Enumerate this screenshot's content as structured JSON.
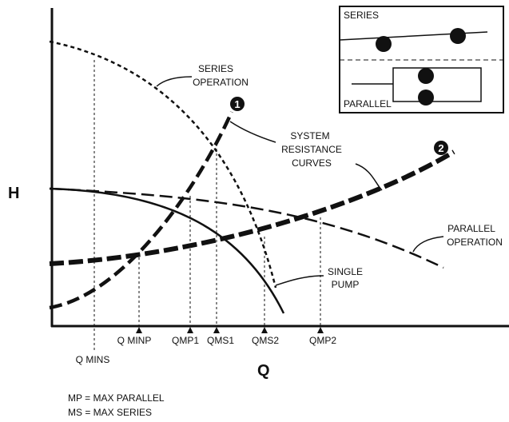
{
  "axes": {
    "y_label": "H",
    "x_label": "Q"
  },
  "ticks": [
    "Q MINS",
    "Q MINP",
    "QMP1",
    "QMS1",
    "QMS2",
    "QMP2"
  ],
  "annotations": {
    "series_operation": [
      "SERIES",
      "OPERATION"
    ],
    "system_resistance": [
      "SYSTEM",
      "RESISTANCE",
      "CURVES"
    ],
    "parallel_operation": [
      "PARALLEL",
      "OPERATION"
    ],
    "single_pump": [
      "SINGLE",
      "PUMP"
    ]
  },
  "markers": [
    "1",
    "2"
  ],
  "inset": {
    "series": "SERIES",
    "parallel": "PARALLEL"
  },
  "legend": [
    "MP = MAX PARALLEL",
    "MS = MAX SERIES"
  ]
}
